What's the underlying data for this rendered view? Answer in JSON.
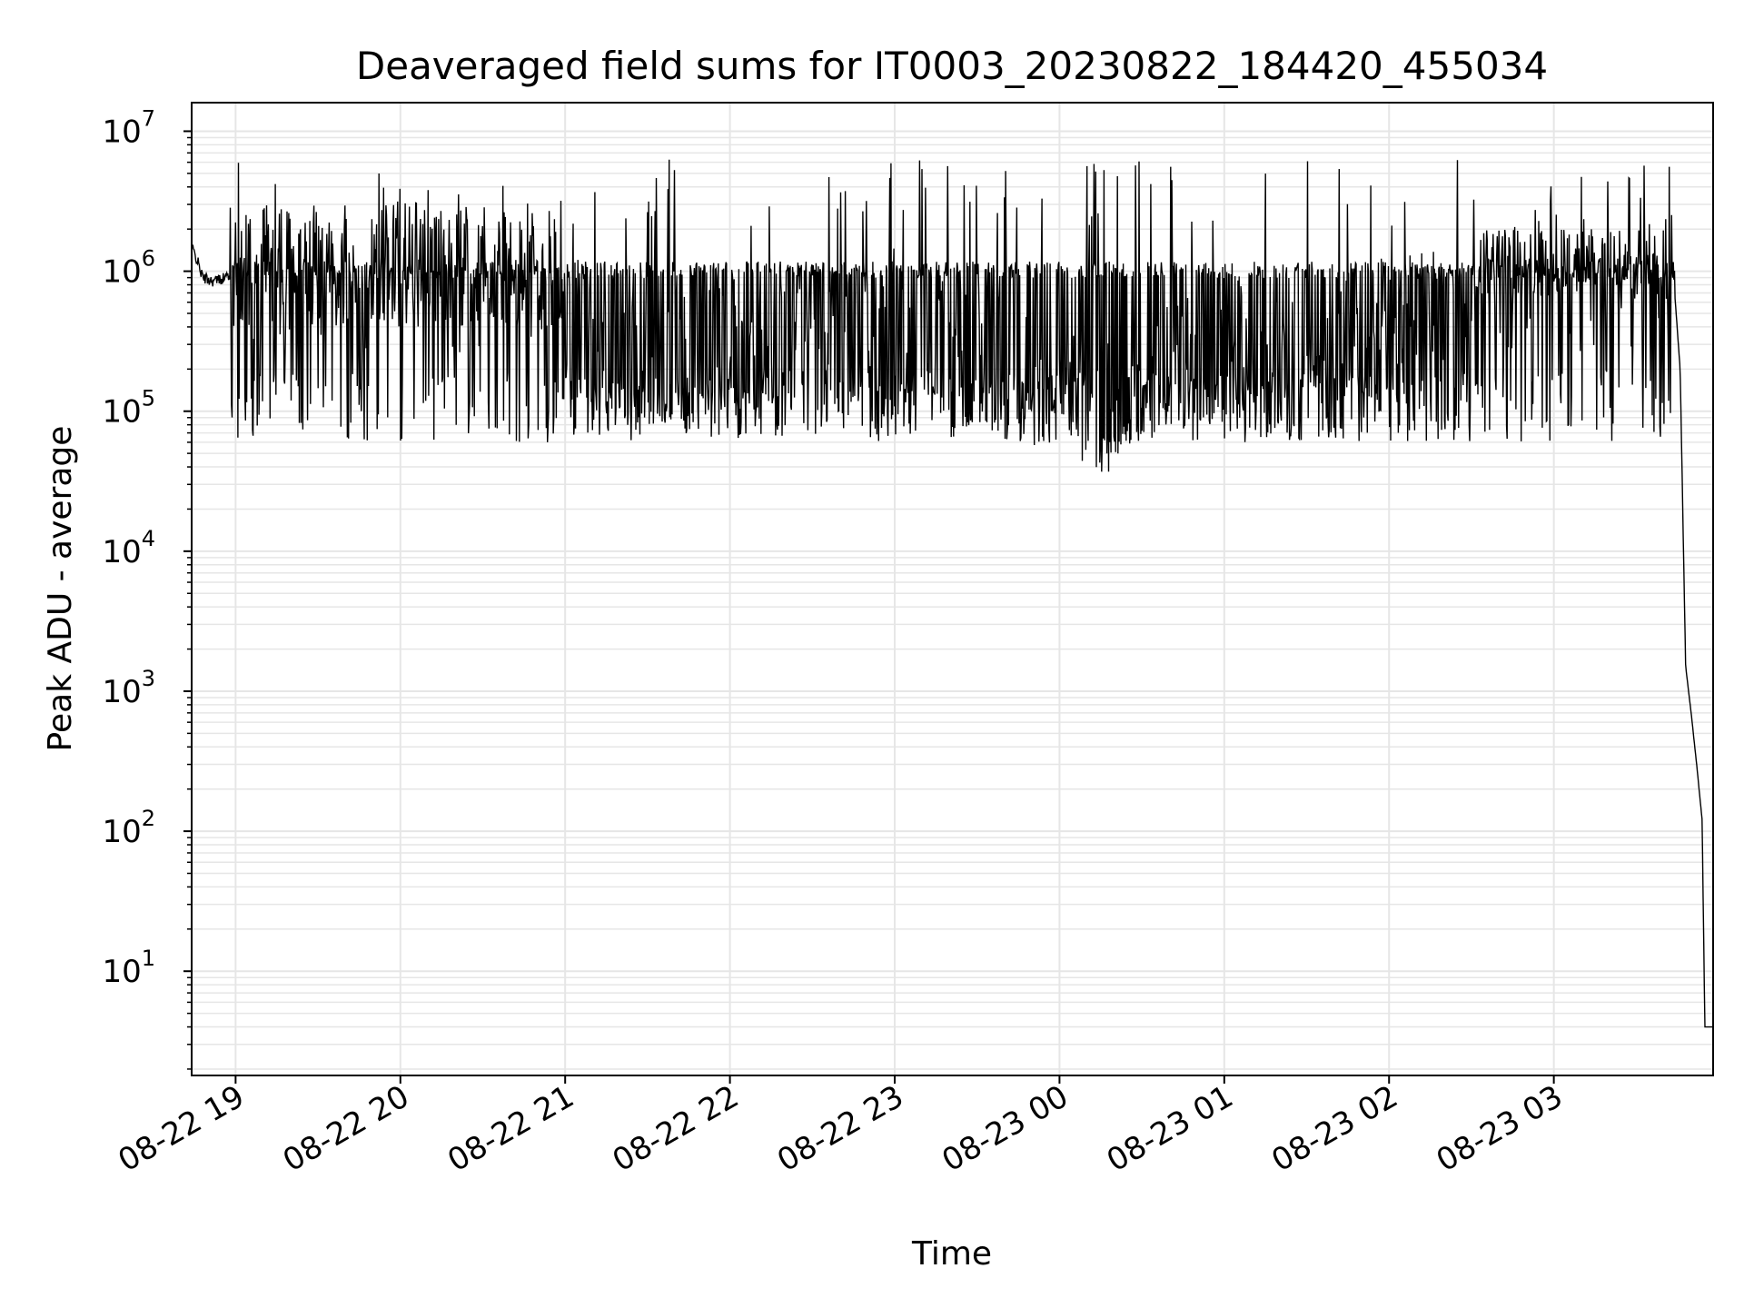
{
  "chart_data": {
    "type": "line",
    "title": "Deaveraged field sums for IT0003_20230822_184420_455034",
    "xlabel": "Time",
    "ylabel": "Peak ADU - average",
    "yscale": "log",
    "ylim": [
      1.8,
      16000000
    ],
    "xlim": [
      "2023-08-22 18:44",
      "2023-08-23 03:58"
    ],
    "grid": true,
    "line_color": "#000000",
    "grid_color": "#e6e6e6",
    "y_ticks": [
      {
        "base": "10",
        "exp": "1",
        "value": 10
      },
      {
        "base": "10",
        "exp": "2",
        "value": 100
      },
      {
        "base": "10",
        "exp": "3",
        "value": 1000
      },
      {
        "base": "10",
        "exp": "4",
        "value": 10000
      },
      {
        "base": "10",
        "exp": "5",
        "value": 100000
      },
      {
        "base": "10",
        "exp": "6",
        "value": 1000000
      },
      {
        "base": "10",
        "exp": "7",
        "value": 10000000
      }
    ],
    "x_ticks": [
      {
        "label": "08-22 19",
        "time": "2023-08-22 19:00"
      },
      {
        "label": "08-22 20",
        "time": "2023-08-22 20:00"
      },
      {
        "label": "08-22 21",
        "time": "2023-08-22 21:00"
      },
      {
        "label": "08-22 22",
        "time": "2023-08-22 22:00"
      },
      {
        "label": "08-22 23",
        "time": "2023-08-22 23:00"
      },
      {
        "label": "08-23 00",
        "time": "2023-08-23 00:00"
      },
      {
        "label": "08-23 01",
        "time": "2023-08-23 01:00"
      },
      {
        "label": "08-23 02",
        "time": "2023-08-23 02:00"
      },
      {
        "label": "08-23 03",
        "time": "2023-08-23 03:00"
      }
    ],
    "series": [
      {
        "x": [
          "2023-08-22 18:44",
          "2023-08-22 18:46",
          "2023-08-22 18:48",
          "2023-08-22 18:52",
          "2023-08-22 18:56",
          "2023-08-22 19:00",
          "2023-08-22 19:10",
          "2023-08-22 19:20",
          "2023-08-22 19:30",
          "2023-08-22 19:40",
          "2023-08-22 19:50",
          "2023-08-22 20:00",
          "2023-08-22 20:10",
          "2023-08-22 20:20",
          "2023-08-22 20:30",
          "2023-08-22 20:40",
          "2023-08-22 20:50",
          "2023-08-22 21:00",
          "2023-08-22 21:15",
          "2023-08-22 21:30",
          "2023-08-22 21:45",
          "2023-08-22 22:00",
          "2023-08-22 22:15",
          "2023-08-22 22:30",
          "2023-08-22 22:45",
          "2023-08-22 23:00",
          "2023-08-22 23:15",
          "2023-08-22 23:30",
          "2023-08-22 23:45",
          "2023-08-23 00:00",
          "2023-08-23 00:15",
          "2023-08-23 00:30",
          "2023-08-23 00:45",
          "2023-08-23 01:00",
          "2023-08-23 01:15",
          "2023-08-23 01:30",
          "2023-08-23 01:45",
          "2023-08-23 02:00",
          "2023-08-23 02:15",
          "2023-08-23 02:30",
          "2023-08-23 02:45",
          "2023-08-23 03:00",
          "2023-08-23 03:10",
          "2023-08-23 03:20",
          "2023-08-23 03:30",
          "2023-08-23 03:40",
          "2023-08-23 03:44",
          "2023-08-23 03:46",
          "2023-08-23 03:48",
          "2023-08-23 03:50",
          "2023-08-23 03:52",
          "2023-08-23 03:54",
          "2023-08-23 03:55",
          "2023-08-23 03:56",
          "2023-08-23 03:58"
        ],
        "y": [
          1500000,
          1200000,
          900000,
          850000,
          900000,
          1000000,
          600000,
          500000,
          800000,
          700000,
          900000,
          1500000,
          1300000,
          800000,
          700000,
          900000,
          800000,
          500000,
          300000,
          200000,
          250000,
          300000,
          350000,
          300000,
          400000,
          500000,
          300000,
          250000,
          200000,
          150000,
          100000,
          150000,
          200000,
          300000,
          300000,
          350000,
          350000,
          400000,
          450000,
          350000,
          700000,
          1000000,
          800000,
          500000,
          800000,
          900000,
          700000,
          200000,
          1500,
          700,
          300,
          120,
          4,
          4,
          4
        ]
      }
    ]
  }
}
